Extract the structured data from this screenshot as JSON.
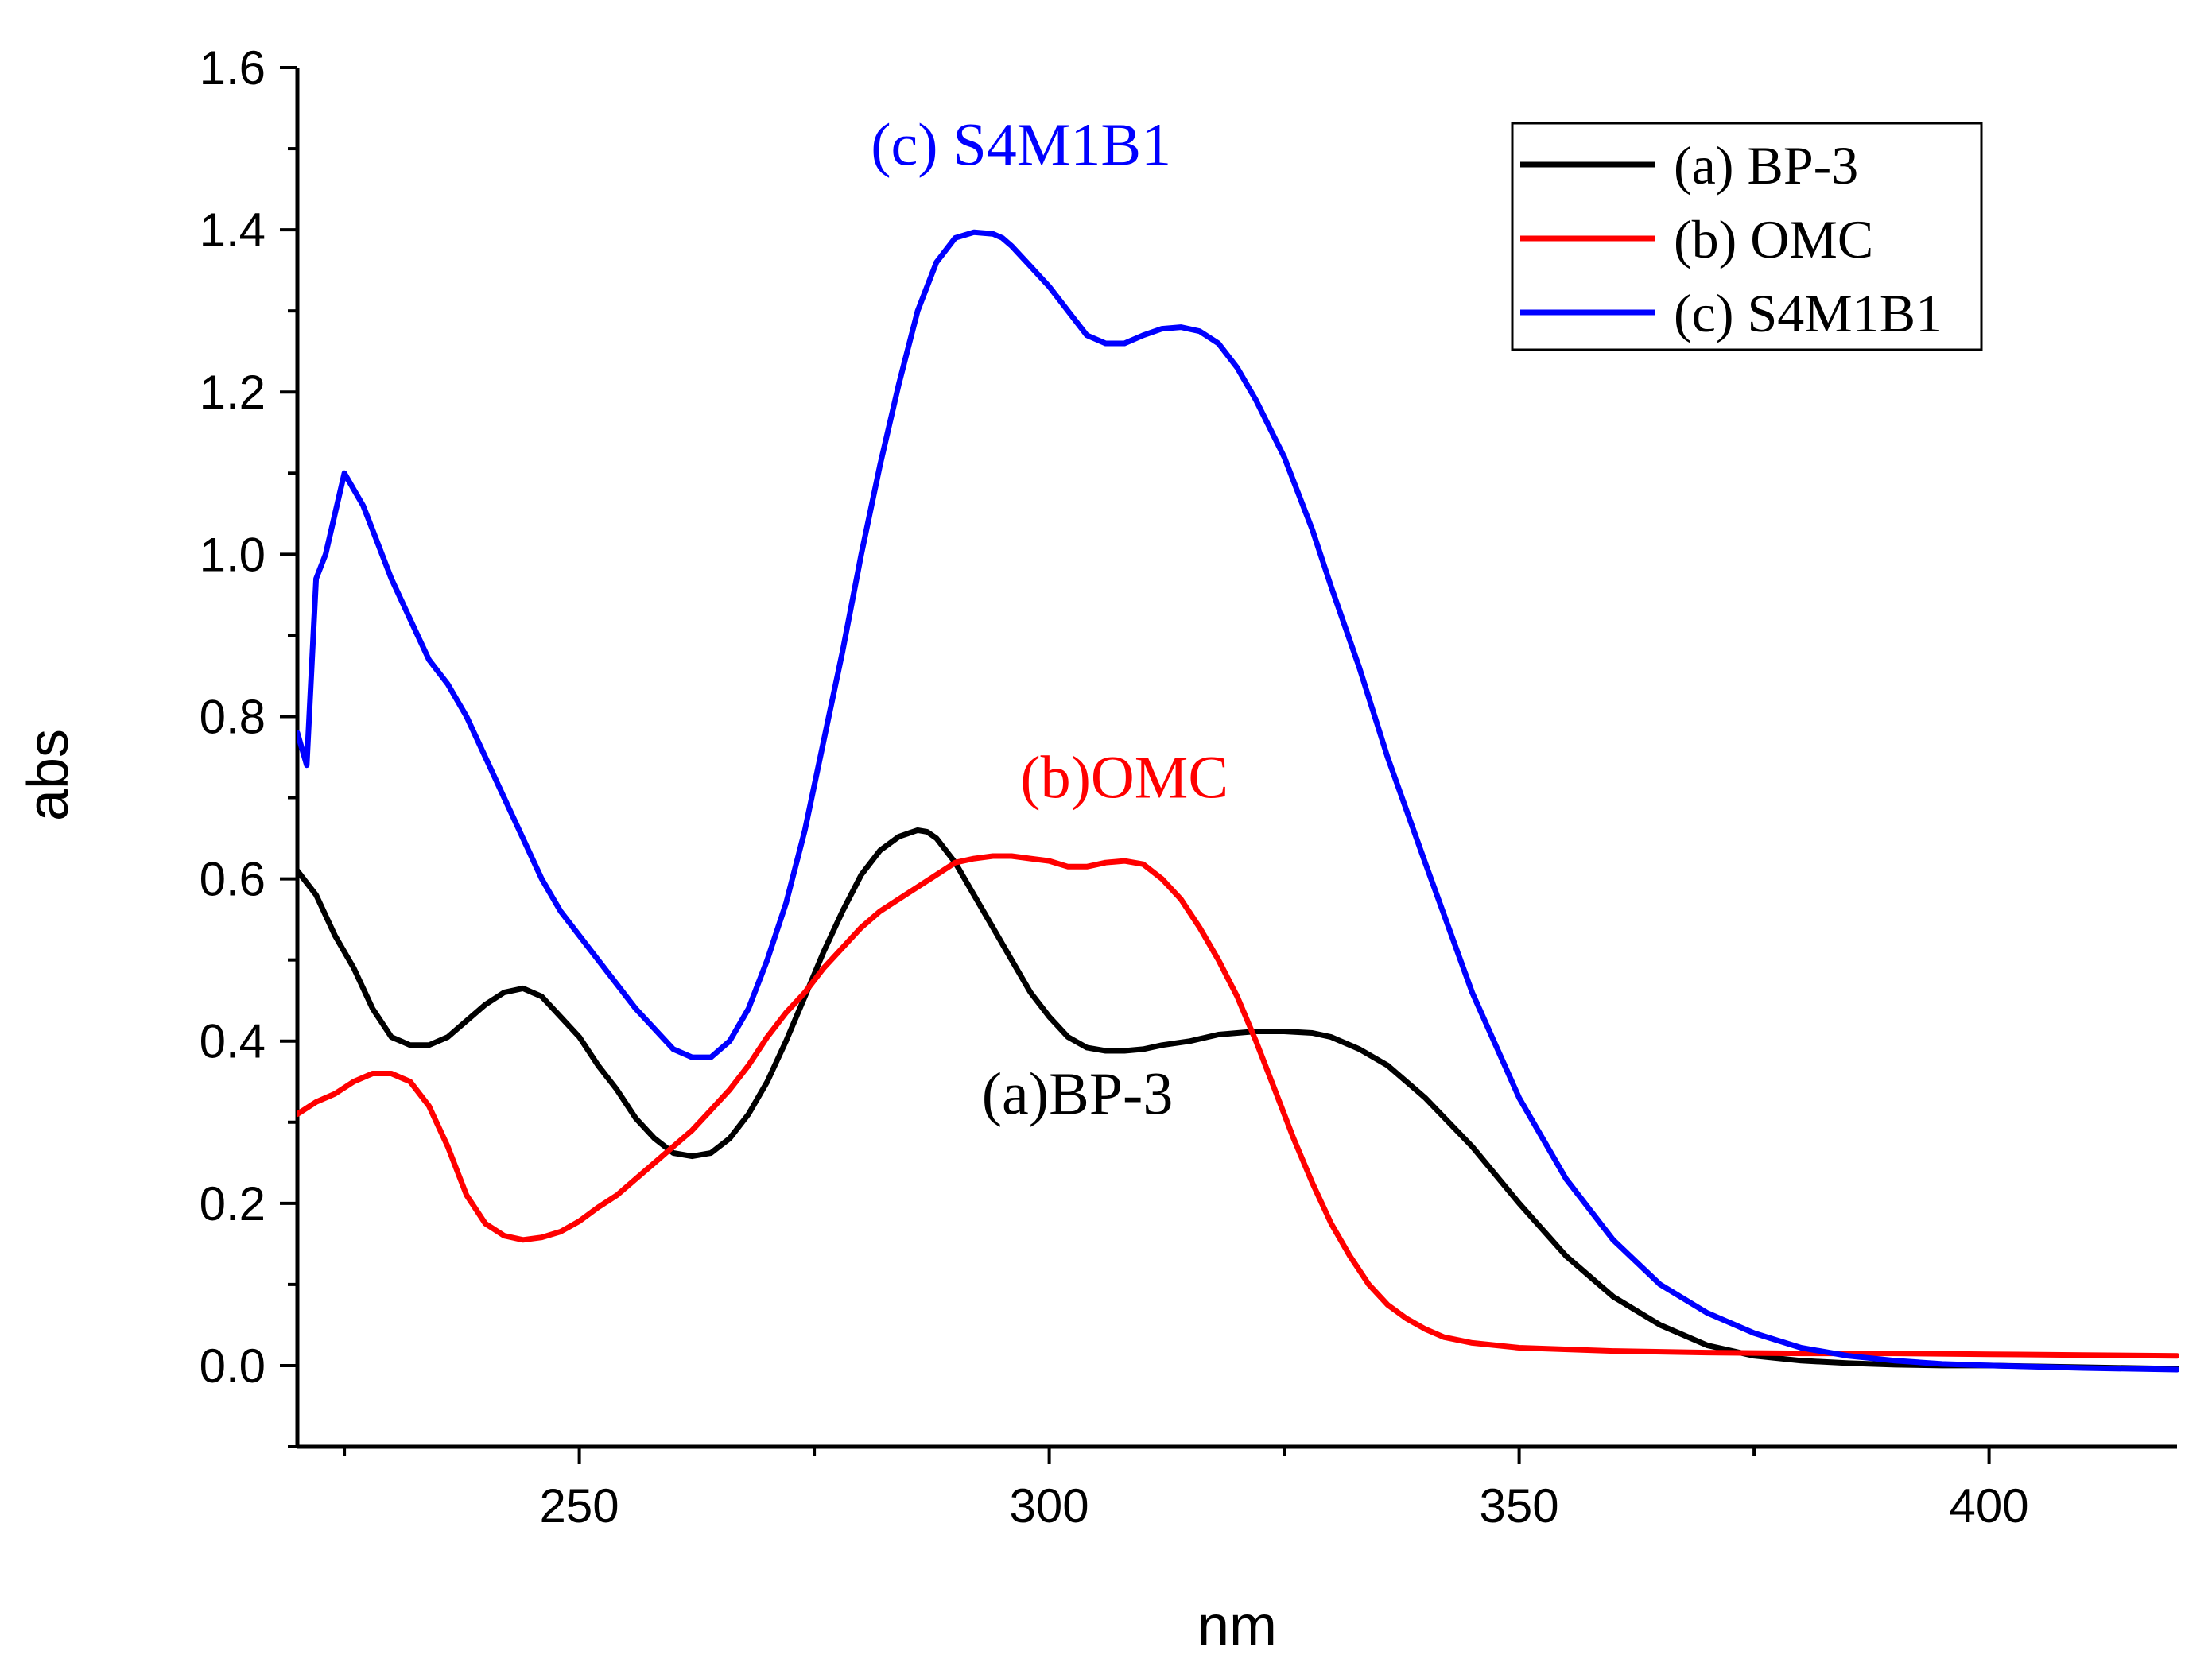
{
  "chart_data": {
    "type": "line",
    "title": "",
    "xlabel": "nm",
    "ylabel": "abs",
    "xlim": [
      220,
      420
    ],
    "ylim": [
      -0.1,
      1.6
    ],
    "x_major_ticks": [
      250,
      300,
      350,
      400
    ],
    "x_minor_ticks": [
      225,
      275,
      325,
      375
    ],
    "y_major_ticks": [
      0.0,
      0.2,
      0.4,
      0.6,
      0.8,
      1.0,
      1.2,
      1.4,
      1.6
    ],
    "y_tick_labels": [
      "0.0",
      "0.2",
      "0.4",
      "0.6",
      "0.8",
      "1.0",
      "1.2",
      "1.4",
      "1.6"
    ],
    "x_tick_labels": [
      "250",
      "300",
      "350",
      "400"
    ],
    "grid": false,
    "legend_position": "top-right",
    "legend": [
      "(a) BP-3",
      "(b) OMC",
      "(c) S4M1B1"
    ],
    "annotations": [
      {
        "text": "(c) S4M1B1",
        "x": 297,
        "y": 1.48,
        "color": "#0000ff"
      },
      {
        "text": "(b)OMC",
        "x": 308,
        "y": 0.7,
        "color": "#ff0000"
      },
      {
        "text": "(a)BP-3",
        "x": 303,
        "y": 0.31,
        "color": "#000000"
      }
    ],
    "series": [
      {
        "name": "(a) BP-3",
        "color": "#000000",
        "x": [
          220,
          222,
          224,
          226,
          228,
          230,
          232,
          234,
          236,
          238,
          240,
          242,
          244,
          246,
          248,
          250,
          252,
          254,
          256,
          258,
          260,
          262,
          264,
          266,
          268,
          270,
          272,
          274,
          276,
          278,
          280,
          282,
          284,
          286,
          287,
          288,
          290,
          292,
          294,
          296,
          298,
          300,
          302,
          304,
          306,
          308,
          310,
          312,
          315,
          318,
          320,
          322,
          325,
          328,
          330,
          333,
          336,
          340,
          345,
          350,
          355,
          360,
          365,
          370,
          375,
          380,
          385,
          390,
          395,
          400,
          410,
          420
        ],
        "y": [
          0.61,
          0.58,
          0.53,
          0.49,
          0.44,
          0.405,
          0.395,
          0.395,
          0.405,
          0.425,
          0.445,
          0.46,
          0.465,
          0.455,
          0.43,
          0.405,
          0.37,
          0.34,
          0.305,
          0.28,
          0.262,
          0.258,
          0.262,
          0.28,
          0.31,
          0.35,
          0.4,
          0.455,
          0.51,
          0.56,
          0.605,
          0.635,
          0.652,
          0.66,
          0.658,
          0.65,
          0.62,
          0.58,
          0.54,
          0.5,
          0.46,
          0.43,
          0.405,
          0.392,
          0.388,
          0.388,
          0.39,
          0.395,
          0.4,
          0.408,
          0.41,
          0.412,
          0.412,
          0.41,
          0.405,
          0.39,
          0.37,
          0.33,
          0.27,
          0.2,
          0.135,
          0.085,
          0.05,
          0.025,
          0.012,
          0.006,
          0.003,
          0.001,
          0.0,
          0.0,
          -0.002,
          -0.004
        ]
      },
      {
        "name": "(b) OMC",
        "color": "#ff0000",
        "x": [
          220,
          222,
          224,
          226,
          228,
          230,
          232,
          234,
          236,
          238,
          240,
          242,
          244,
          246,
          248,
          250,
          252,
          254,
          256,
          258,
          260,
          262,
          264,
          266,
          268,
          270,
          272,
          274,
          276,
          278,
          280,
          282,
          284,
          286,
          288,
          290,
          292,
          294,
          296,
          298,
          300,
          302,
          304,
          306,
          308,
          310,
          312,
          314,
          316,
          318,
          320,
          322,
          324,
          326,
          328,
          330,
          332,
          334,
          336,
          338,
          340,
          342,
          345,
          350,
          360,
          370,
          380,
          390,
          400,
          410,
          420
        ],
        "y": [
          0.31,
          0.325,
          0.335,
          0.35,
          0.36,
          0.36,
          0.35,
          0.32,
          0.27,
          0.21,
          0.175,
          0.16,
          0.155,
          0.158,
          0.165,
          0.178,
          0.195,
          0.21,
          0.23,
          0.25,
          0.27,
          0.29,
          0.315,
          0.34,
          0.37,
          0.405,
          0.435,
          0.46,
          0.49,
          0.515,
          0.54,
          0.56,
          0.575,
          0.59,
          0.605,
          0.62,
          0.625,
          0.628,
          0.628,
          0.625,
          0.622,
          0.615,
          0.615,
          0.62,
          0.622,
          0.618,
          0.6,
          0.575,
          0.54,
          0.5,
          0.455,
          0.4,
          0.34,
          0.28,
          0.225,
          0.175,
          0.135,
          0.1,
          0.075,
          0.058,
          0.045,
          0.035,
          0.028,
          0.022,
          0.018,
          0.016,
          0.015,
          0.015,
          0.014,
          0.013,
          0.012
        ]
      },
      {
        "name": "(c) S4M1B1",
        "color": "#0000ff",
        "x": [
          220,
          221,
          222,
          223,
          224,
          225,
          226,
          227,
          228,
          230,
          232,
          234,
          236,
          238,
          240,
          242,
          244,
          246,
          248,
          250,
          252,
          254,
          256,
          258,
          260,
          262,
          264,
          266,
          268,
          270,
          272,
          274,
          276,
          278,
          280,
          282,
          284,
          286,
          288,
          290,
          292,
          294,
          295,
          296,
          298,
          300,
          302,
          304,
          306,
          308,
          310,
          312,
          314,
          316,
          318,
          320,
          322,
          325,
          328,
          330,
          333,
          336,
          340,
          345,
          350,
          355,
          360,
          365,
          370,
          375,
          380,
          385,
          390,
          395,
          400,
          410,
          420
        ],
        "y": [
          0.78,
          0.74,
          0.97,
          1.0,
          1.05,
          1.1,
          1.08,
          1.06,
          1.03,
          0.97,
          0.92,
          0.87,
          0.84,
          0.8,
          0.75,
          0.7,
          0.65,
          0.6,
          0.56,
          0.53,
          0.5,
          0.47,
          0.44,
          0.415,
          0.39,
          0.38,
          0.38,
          0.4,
          0.44,
          0.5,
          0.57,
          0.66,
          0.77,
          0.88,
          1.0,
          1.11,
          1.21,
          1.3,
          1.36,
          1.39,
          1.397,
          1.395,
          1.39,
          1.38,
          1.355,
          1.33,
          1.3,
          1.27,
          1.26,
          1.26,
          1.27,
          1.278,
          1.28,
          1.275,
          1.26,
          1.23,
          1.19,
          1.12,
          1.03,
          0.96,
          0.86,
          0.75,
          0.62,
          0.46,
          0.33,
          0.23,
          0.155,
          0.1,
          0.065,
          0.04,
          0.022,
          0.012,
          0.006,
          0.002,
          0.0,
          -0.003,
          -0.005
        ]
      }
    ]
  }
}
